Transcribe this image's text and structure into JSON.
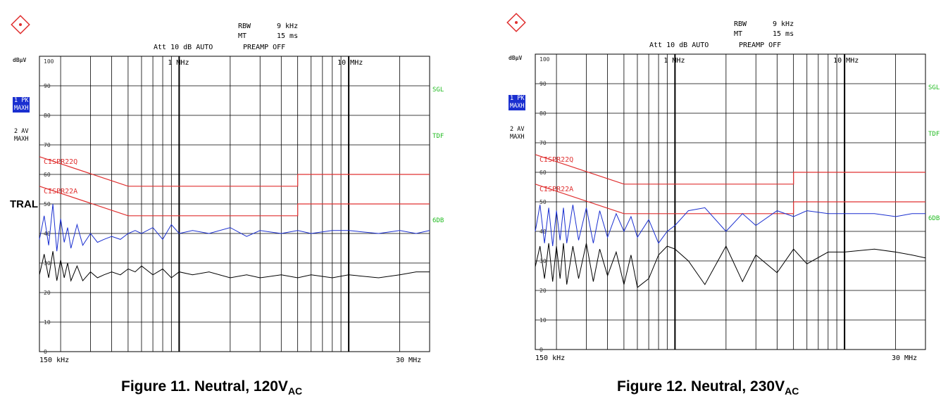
{
  "overlay_text": "TRAL",
  "chart_data": [
    {
      "type": "line",
      "title": "Figure 11. Neutral, 120V",
      "title_sub": "AC",
      "header": {
        "rbw_label": "RBW",
        "rbw_value": "9 kHz",
        "mt_label": "MT",
        "mt_value": "15 ms",
        "att": "Att 10 dB AUTO",
        "preamp": "PREAMP OFF"
      },
      "ylabel": "dBµV",
      "ylim": [
        0,
        100
      ],
      "yticks": [
        "0",
        "10",
        "20",
        "30",
        "40",
        "50",
        "60",
        "70",
        "80",
        "90",
        "100"
      ],
      "xlim_hz": [
        150000,
        30000000
      ],
      "x_start_label": "150 kHz",
      "x_end_label": "30 MHz",
      "x_marker_labels": [
        "1 MHz",
        "10 MHz"
      ],
      "right_labels": [
        "SGL",
        "TDF",
        "6DB"
      ],
      "trace_tags": [
        {
          "line1": "1 PK",
          "line2": "MAXH"
        },
        {
          "line1": "2 AV",
          "line2": "MAXH"
        }
      ],
      "limits": [
        {
          "name": "CISPR22Q",
          "x_mhz": [
            0.15,
            0.5,
            0.5,
            5,
            5,
            30
          ],
          "y": [
            66,
            56,
            56,
            56,
            60,
            60
          ]
        },
        {
          "name": "CISPR22A",
          "x_mhz": [
            0.15,
            0.5,
            0.5,
            5,
            5,
            30
          ],
          "y": [
            56,
            46,
            46,
            46,
            50,
            50
          ]
        }
      ],
      "series": [
        {
          "name": "1 PK MAXH",
          "color": "#1a2fd0",
          "x_mhz": [
            0.15,
            0.16,
            0.17,
            0.18,
            0.19,
            0.2,
            0.21,
            0.22,
            0.23,
            0.25,
            0.27,
            0.3,
            0.33,
            0.36,
            0.4,
            0.45,
            0.5,
            0.55,
            0.6,
            0.7,
            0.8,
            0.9,
            1,
            1.2,
            1.5,
            2,
            2.5,
            3,
            4,
            5,
            6,
            8,
            10,
            15,
            20,
            25,
            30
          ],
          "values": [
            38,
            46,
            36,
            50,
            34,
            45,
            37,
            42,
            35,
            43,
            36,
            40,
            37,
            38,
            39,
            38,
            40,
            41,
            40,
            42,
            38,
            43,
            40,
            41,
            40,
            42,
            39,
            41,
            40,
            41,
            40,
            41,
            41,
            40,
            41,
            40,
            41
          ]
        },
        {
          "name": "2 AV MAXH",
          "color": "#000000",
          "x_mhz": [
            0.15,
            0.16,
            0.17,
            0.18,
            0.19,
            0.2,
            0.21,
            0.22,
            0.23,
            0.25,
            0.27,
            0.3,
            0.33,
            0.36,
            0.4,
            0.45,
            0.5,
            0.55,
            0.6,
            0.7,
            0.8,
            0.9,
            1,
            1.2,
            1.5,
            2,
            2.5,
            3,
            4,
            5,
            6,
            8,
            10,
            15,
            20,
            25,
            30
          ],
          "values": [
            26,
            33,
            25,
            34,
            24,
            31,
            25,
            30,
            24,
            29,
            24,
            27,
            25,
            26,
            27,
            26,
            28,
            27,
            29,
            26,
            28,
            25,
            27,
            26,
            27,
            25,
            26,
            25,
            26,
            25,
            26,
            25,
            26,
            25,
            26,
            27,
            27
          ]
        }
      ]
    },
    {
      "type": "line",
      "title": "Figure 12. Neutral, 230V",
      "title_sub": "AC",
      "header": {
        "rbw_label": "RBW",
        "rbw_value": "9 kHz",
        "mt_label": "MT",
        "mt_value": "15 ms",
        "att": "Att 10 dB AUTO",
        "preamp": "PREAMP OFF"
      },
      "ylabel": "dBµV",
      "ylim": [
        0,
        100
      ],
      "yticks": [
        "0",
        "10",
        "20",
        "30",
        "40",
        "50",
        "60",
        "70",
        "80",
        "90",
        "100"
      ],
      "xlim_hz": [
        150000,
        30000000
      ],
      "x_start_label": "150 kHz",
      "x_end_label": "30 MHz",
      "x_marker_labels": [
        "1 MHz",
        "10 MHz"
      ],
      "right_labels": [
        "SGL",
        "TDF",
        "6DB"
      ],
      "trace_tags": [
        {
          "line1": "1 PK",
          "line2": "MAXH"
        },
        {
          "line1": "2 AV",
          "line2": "MAXH"
        }
      ],
      "limits": [
        {
          "name": "CISPR22Q",
          "x_mhz": [
            0.15,
            0.5,
            0.5,
            5,
            5,
            30
          ],
          "y": [
            66,
            56,
            56,
            56,
            60,
            60
          ]
        },
        {
          "name": "CISPR22A",
          "x_mhz": [
            0.15,
            0.5,
            0.5,
            5,
            5,
            30
          ],
          "y": [
            56,
            46,
            46,
            46,
            50,
            50
          ]
        }
      ],
      "series": [
        {
          "name": "1 PK MAXH",
          "color": "#1a2fd0",
          "x_mhz": [
            0.15,
            0.16,
            0.17,
            0.18,
            0.19,
            0.2,
            0.21,
            0.22,
            0.23,
            0.25,
            0.27,
            0.3,
            0.33,
            0.36,
            0.4,
            0.45,
            0.5,
            0.55,
            0.6,
            0.7,
            0.8,
            0.9,
            1,
            1.2,
            1.5,
            2,
            2.5,
            3,
            4,
            5,
            6,
            8,
            10,
            15,
            20,
            25,
            30
          ],
          "values": [
            40,
            49,
            36,
            48,
            35,
            47,
            37,
            48,
            36,
            49,
            37,
            48,
            36,
            47,
            38,
            46,
            40,
            45,
            38,
            44,
            36,
            40,
            42,
            47,
            48,
            40,
            46,
            42,
            47,
            45,
            47,
            46,
            46,
            46,
            45,
            46,
            46
          ]
        },
        {
          "name": "2 AV MAXH",
          "color": "#000000",
          "x_mhz": [
            0.15,
            0.16,
            0.17,
            0.18,
            0.19,
            0.2,
            0.21,
            0.22,
            0.23,
            0.25,
            0.27,
            0.3,
            0.33,
            0.36,
            0.4,
            0.45,
            0.5,
            0.55,
            0.6,
            0.7,
            0.8,
            0.9,
            1,
            1.2,
            1.5,
            2,
            2.5,
            3,
            4,
            5,
            6,
            8,
            10,
            15,
            20,
            25,
            30
          ],
          "values": [
            28,
            35,
            24,
            36,
            23,
            35,
            24,
            36,
            22,
            35,
            24,
            36,
            23,
            34,
            25,
            33,
            22,
            32,
            21,
            24,
            32,
            35,
            34,
            30,
            22,
            35,
            23,
            32,
            26,
            34,
            29,
            33,
            33,
            34,
            33,
            32,
            31
          ]
        }
      ]
    }
  ]
}
